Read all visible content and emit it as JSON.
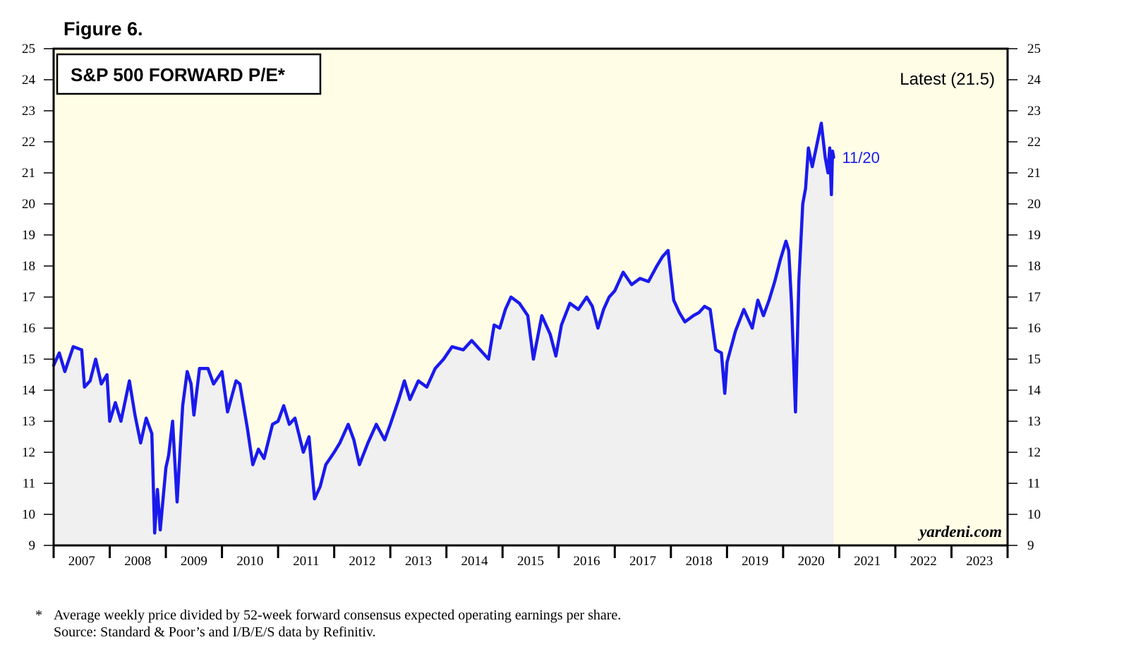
{
  "figure_label": "Figure 6.",
  "footnote": {
    "marker": "*",
    "line1": "Average weekly price divided by 52-week forward consensus expected operating earnings per share.",
    "line2": "Source: Standard & Poor’s and I/B/E/S data by Refinitiv."
  },
  "chart_data": {
    "type": "area",
    "title": "S&P 500 FORWARD P/E*",
    "latest_label": "Latest (21.5)",
    "last_point_label": "11/20",
    "watermark": "yardeni.com",
    "ylim": [
      9,
      25
    ],
    "y_ticks": [
      9,
      10,
      11,
      12,
      13,
      14,
      15,
      16,
      17,
      18,
      19,
      20,
      21,
      22,
      23,
      24,
      25
    ],
    "x_range": [
      2007,
      2024
    ],
    "x_tick_labels": [
      "2007",
      "2008",
      "2009",
      "2010",
      "2011",
      "2012",
      "2013",
      "2014",
      "2015",
      "2016",
      "2017",
      "2018",
      "2019",
      "2020",
      "2021",
      "2022",
      "2023"
    ],
    "grid": false,
    "colors": {
      "line": "#1a1aee",
      "area": "#f0f0f0",
      "background": "#fffde6",
      "frame": "#000000"
    },
    "series": [
      {
        "values": [
          [
            2007.0,
            14.8
          ],
          [
            2007.1,
            15.2
          ],
          [
            2007.2,
            14.6
          ],
          [
            2007.35,
            15.4
          ],
          [
            2007.5,
            15.3
          ],
          [
            2007.55,
            14.1
          ],
          [
            2007.65,
            14.3
          ],
          [
            2007.75,
            15.0
          ],
          [
            2007.85,
            14.2
          ],
          [
            2007.95,
            14.5
          ],
          [
            2008.0,
            13.0
          ],
          [
            2008.1,
            13.6
          ],
          [
            2008.2,
            13.0
          ],
          [
            2008.35,
            14.3
          ],
          [
            2008.45,
            13.2
          ],
          [
            2008.55,
            12.3
          ],
          [
            2008.65,
            13.1
          ],
          [
            2008.75,
            12.6
          ],
          [
            2008.8,
            9.4
          ],
          [
            2008.85,
            10.8
          ],
          [
            2008.9,
            9.5
          ],
          [
            2009.0,
            11.5
          ],
          [
            2009.05,
            11.9
          ],
          [
            2009.12,
            13.0
          ],
          [
            2009.2,
            10.4
          ],
          [
            2009.3,
            13.5
          ],
          [
            2009.38,
            14.6
          ],
          [
            2009.45,
            14.2
          ],
          [
            2009.5,
            13.2
          ],
          [
            2009.6,
            14.7
          ],
          [
            2009.75,
            14.7
          ],
          [
            2009.85,
            14.2
          ],
          [
            2010.0,
            14.6
          ],
          [
            2010.1,
            13.3
          ],
          [
            2010.25,
            14.3
          ],
          [
            2010.32,
            14.2
          ],
          [
            2010.45,
            12.8
          ],
          [
            2010.55,
            11.6
          ],
          [
            2010.65,
            12.1
          ],
          [
            2010.75,
            11.8
          ],
          [
            2010.9,
            12.9
          ],
          [
            2011.0,
            13.0
          ],
          [
            2011.1,
            13.5
          ],
          [
            2011.2,
            12.9
          ],
          [
            2011.3,
            13.1
          ],
          [
            2011.45,
            12.0
          ],
          [
            2011.55,
            12.5
          ],
          [
            2011.65,
            10.5
          ],
          [
            2011.75,
            10.9
          ],
          [
            2011.85,
            11.6
          ],
          [
            2012.0,
            12.0
          ],
          [
            2012.1,
            12.3
          ],
          [
            2012.25,
            12.9
          ],
          [
            2012.35,
            12.4
          ],
          [
            2012.45,
            11.6
          ],
          [
            2012.6,
            12.3
          ],
          [
            2012.75,
            12.9
          ],
          [
            2012.9,
            12.4
          ],
          [
            2013.0,
            12.9
          ],
          [
            2013.15,
            13.7
          ],
          [
            2013.25,
            14.3
          ],
          [
            2013.35,
            13.7
          ],
          [
            2013.5,
            14.3
          ],
          [
            2013.65,
            14.1
          ],
          [
            2013.8,
            14.7
          ],
          [
            2013.95,
            15.0
          ],
          [
            2014.1,
            15.4
          ],
          [
            2014.3,
            15.3
          ],
          [
            2014.45,
            15.6
          ],
          [
            2014.6,
            15.3
          ],
          [
            2014.75,
            15.0
          ],
          [
            2014.85,
            16.1
          ],
          [
            2014.95,
            16.0
          ],
          [
            2015.05,
            16.6
          ],
          [
            2015.15,
            17.0
          ],
          [
            2015.3,
            16.8
          ],
          [
            2015.45,
            16.4
          ],
          [
            2015.55,
            15.0
          ],
          [
            2015.7,
            16.4
          ],
          [
            2015.85,
            15.8
          ],
          [
            2015.95,
            15.1
          ],
          [
            2016.05,
            16.1
          ],
          [
            2016.2,
            16.8
          ],
          [
            2016.35,
            16.6
          ],
          [
            2016.5,
            17.0
          ],
          [
            2016.6,
            16.7
          ],
          [
            2016.7,
            16.0
          ],
          [
            2016.8,
            16.6
          ],
          [
            2016.9,
            17.0
          ],
          [
            2017.0,
            17.2
          ],
          [
            2017.15,
            17.8
          ],
          [
            2017.3,
            17.4
          ],
          [
            2017.45,
            17.6
          ],
          [
            2017.6,
            17.5
          ],
          [
            2017.75,
            18.0
          ],
          [
            2017.85,
            18.3
          ],
          [
            2017.95,
            18.5
          ],
          [
            2018.05,
            16.9
          ],
          [
            2018.15,
            16.5
          ],
          [
            2018.25,
            16.2
          ],
          [
            2018.4,
            16.4
          ],
          [
            2018.5,
            16.5
          ],
          [
            2018.6,
            16.7
          ],
          [
            2018.7,
            16.6
          ],
          [
            2018.8,
            15.3
          ],
          [
            2018.9,
            15.2
          ],
          [
            2018.96,
            13.9
          ],
          [
            2019.0,
            14.9
          ],
          [
            2019.15,
            15.9
          ],
          [
            2019.3,
            16.6
          ],
          [
            2019.45,
            16.0
          ],
          [
            2019.55,
            16.9
          ],
          [
            2019.65,
            16.4
          ],
          [
            2019.75,
            16.9
          ],
          [
            2019.85,
            17.5
          ],
          [
            2019.95,
            18.2
          ],
          [
            2020.05,
            18.8
          ],
          [
            2020.1,
            18.5
          ],
          [
            2020.15,
            16.8
          ],
          [
            2020.22,
            13.3
          ],
          [
            2020.28,
            17.5
          ],
          [
            2020.35,
            20.0
          ],
          [
            2020.4,
            20.5
          ],
          [
            2020.45,
            21.8
          ],
          [
            2020.52,
            21.2
          ],
          [
            2020.6,
            21.9
          ],
          [
            2020.68,
            22.6
          ],
          [
            2020.75,
            21.5
          ],
          [
            2020.8,
            21.0
          ],
          [
            2020.83,
            21.8
          ],
          [
            2020.86,
            20.3
          ],
          [
            2020.88,
            21.7
          ],
          [
            2020.9,
            21.5
          ]
        ]
      }
    ]
  }
}
